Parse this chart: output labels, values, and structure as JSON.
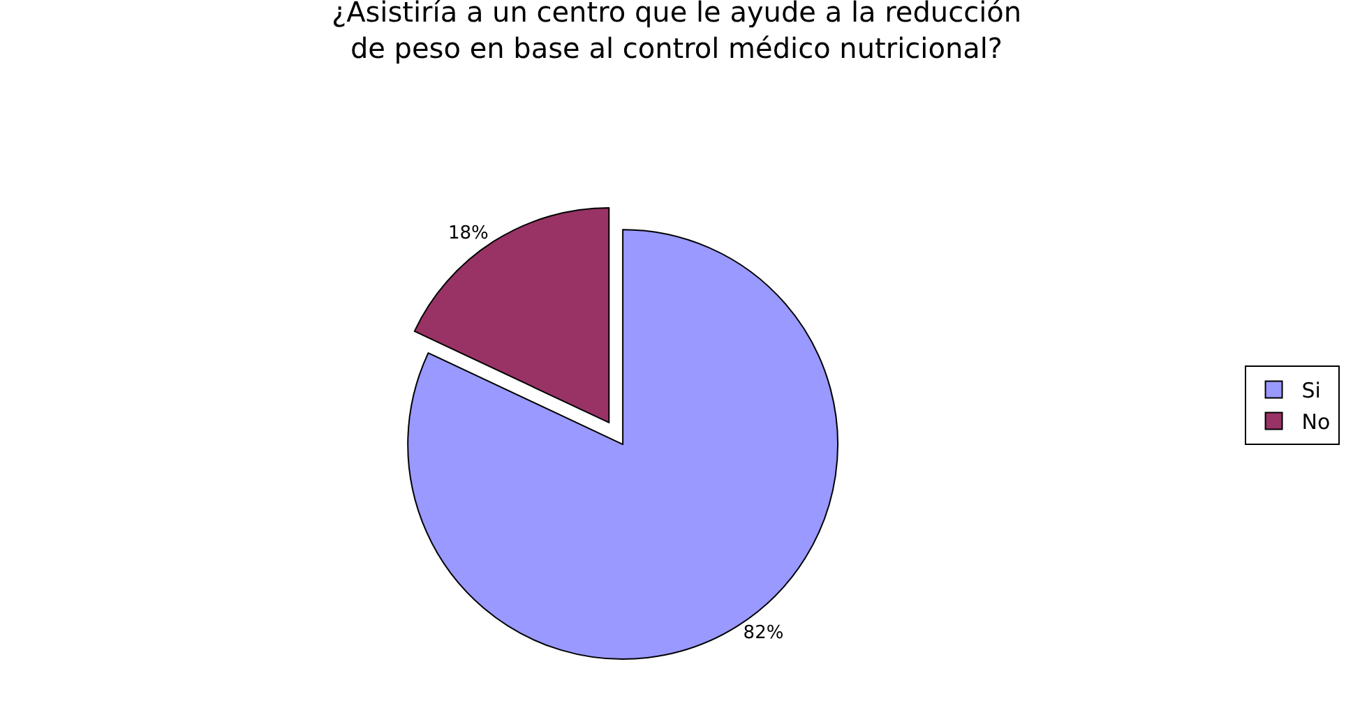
{
  "chart_data": {
    "type": "pie",
    "title": "¿Asistiría a un centro que le ayude a la reducción\nde peso en base al control médico nutricional?",
    "categories": [
      "Si",
      "No"
    ],
    "values": [
      82,
      18
    ],
    "value_labels": [
      "82%",
      "18%"
    ],
    "colors": [
      "#9999ff",
      "#993366"
    ],
    "legend": "right"
  }
}
